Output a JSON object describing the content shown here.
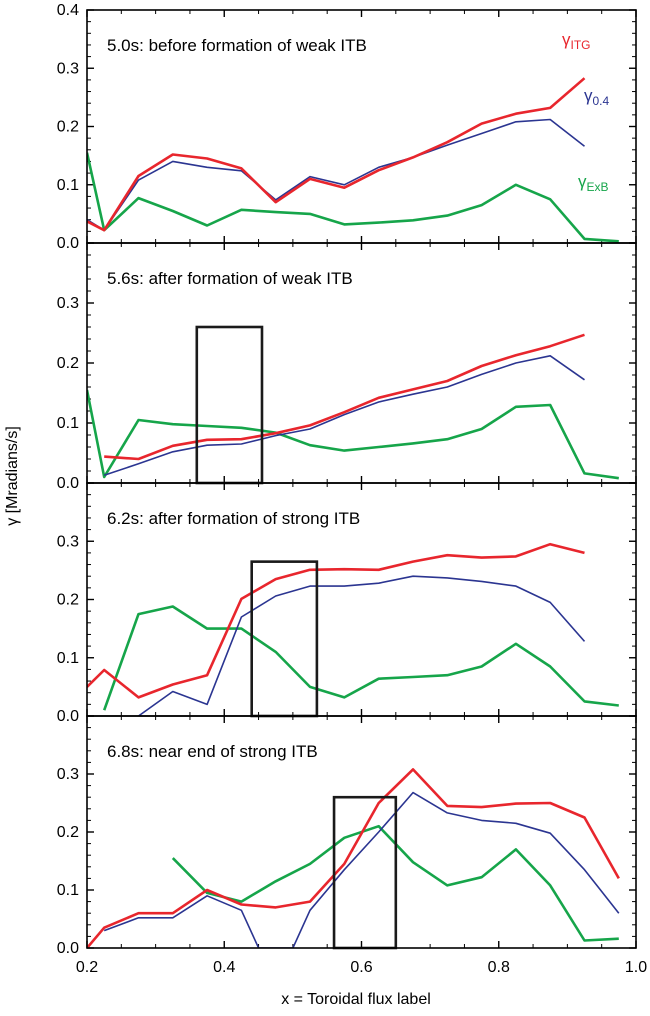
{
  "chart_data": {
    "type": "line",
    "xlabel": "x = Toroidal flux label",
    "ylabel": "γ [Mradians/s]",
    "xlim": [
      0.2,
      1.0
    ],
    "ylim": [
      0.0,
      0.4
    ],
    "xticks": [
      "0.2",
      "0.4",
      "0.6",
      "0.8",
      "1.0"
    ],
    "yticks": [
      "0.0",
      "0.1",
      "0.2",
      "0.3",
      "0.4"
    ],
    "series_styles": [
      {
        "key": "itg",
        "color": "#e8262d"
      },
      {
        "key": "g04",
        "color": "#2b3591"
      },
      {
        "key": "exb",
        "color": "#16a54a"
      }
    ],
    "legend": [
      {
        "base": "γ",
        "sub": "ITG",
        "color": "#e8262d"
      },
      {
        "base": "γ",
        "sub": "0.4",
        "color": "#2b3591"
      },
      {
        "base": "γ",
        "sub": "ExB",
        "color": "#16a54a"
      }
    ],
    "panels": [
      {
        "title": "5.0s: before formation of weak ITB",
        "box": null,
        "series": {
          "itg": {
            "x": [
              0.2,
              0.225,
              0.275,
              0.325,
              0.375,
              0.425,
              0.475,
              0.525,
              0.575,
              0.625,
              0.675,
              0.725,
              0.775,
              0.825,
              0.875,
              0.925
            ],
            "y": [
              0.037,
              0.022,
              0.115,
              0.152,
              0.145,
              0.128,
              0.07,
              0.11,
              0.095,
              0.125,
              0.147,
              0.173,
              0.205,
              0.222,
              0.232,
              0.283
            ]
          },
          "g04": {
            "x": [
              0.2,
              0.225,
              0.275,
              0.325,
              0.375,
              0.425,
              0.475,
              0.525,
              0.575,
              0.625,
              0.675,
              0.725,
              0.775,
              0.825,
              0.875,
              0.925
            ],
            "y": [
              0.04,
              0.022,
              0.108,
              0.14,
              0.13,
              0.124,
              0.074,
              0.114,
              0.1,
              0.13,
              0.147,
              0.168,
              0.188,
              0.208,
              0.212,
              0.166
            ]
          },
          "exb": {
            "x": [
              0.2,
              0.225,
              0.275,
              0.325,
              0.375,
              0.425,
              0.475,
              0.525,
              0.575,
              0.625,
              0.675,
              0.725,
              0.775,
              0.825,
              0.875,
              0.925,
              0.975
            ],
            "y": [
              0.155,
              0.022,
              0.077,
              0.055,
              0.03,
              0.057,
              0.053,
              0.05,
              0.032,
              0.035,
              0.039,
              0.047,
              0.065,
              0.1,
              0.075,
              0.007,
              0.003
            ]
          }
        }
      },
      {
        "title": "5.6s: after formation of weak ITB",
        "box": [
          0.36,
          0.455,
          0.0,
          0.26
        ],
        "series": {
          "itg": {
            "x": [
              0.225,
              0.275,
              0.325,
              0.375,
              0.425,
              0.475,
              0.525,
              0.575,
              0.625,
              0.675,
              0.725,
              0.775,
              0.825,
              0.875,
              0.925
            ],
            "y": [
              0.044,
              0.04,
              0.062,
              0.072,
              0.073,
              0.083,
              0.096,
              0.118,
              0.142,
              0.156,
              0.17,
              0.195,
              0.213,
              0.228,
              0.247
            ]
          },
          "g04": {
            "x": [
              0.225,
              0.275,
              0.325,
              0.375,
              0.425,
              0.475,
              0.525,
              0.575,
              0.625,
              0.675,
              0.725,
              0.775,
              0.825,
              0.875,
              0.925
            ],
            "y": [
              0.013,
              0.032,
              0.052,
              0.063,
              0.065,
              0.079,
              0.09,
              0.114,
              0.135,
              0.148,
              0.16,
              0.181,
              0.2,
              0.212,
              0.172
            ]
          },
          "exb": {
            "x": [
              0.2,
              0.225,
              0.275,
              0.325,
              0.375,
              0.425,
              0.475,
              0.525,
              0.575,
              0.625,
              0.675,
              0.725,
              0.775,
              0.825,
              0.875,
              0.925,
              0.975
            ],
            "y": [
              0.155,
              0.01,
              0.105,
              0.098,
              0.095,
              0.092,
              0.084,
              0.063,
              0.054,
              0.06,
              0.066,
              0.073,
              0.09,
              0.127,
              0.13,
              0.016,
              0.008
            ]
          }
        }
      },
      {
        "title": "6.2s: after formation of strong ITB",
        "box": [
          0.44,
          0.535,
          0.0,
          0.265
        ],
        "series": {
          "itg": {
            "x": [
              0.2,
              0.225,
              0.275,
              0.325,
              0.375,
              0.425,
              0.475,
              0.525,
              0.575,
              0.625,
              0.675,
              0.725,
              0.775,
              0.825,
              0.875,
              0.925
            ],
            "y": [
              0.05,
              0.079,
              0.032,
              0.054,
              0.07,
              0.201,
              0.235,
              0.251,
              0.252,
              0.251,
              0.265,
              0.276,
              0.272,
              0.274,
              0.295,
              0.28
            ]
          },
          "g04": {
            "x": [
              0.275,
              0.325,
              0.375,
              0.425,
              0.475,
              0.525,
              0.575,
              0.625,
              0.675,
              0.725,
              0.775,
              0.825,
              0.875,
              0.925
            ],
            "y": [
              0.0,
              0.042,
              0.02,
              0.17,
              0.206,
              0.223,
              0.223,
              0.228,
              0.24,
              0.237,
              0.231,
              0.223,
              0.195,
              0.128
            ]
          },
          "exb": {
            "x": [
              0.225,
              0.275,
              0.325,
              0.375,
              0.425,
              0.475,
              0.525,
              0.575,
              0.625,
              0.675,
              0.725,
              0.775,
              0.825,
              0.875,
              0.925,
              0.975
            ],
            "y": [
              0.01,
              0.175,
              0.188,
              0.15,
              0.15,
              0.11,
              0.05,
              0.032,
              0.064,
              0.067,
              0.07,
              0.085,
              0.124,
              0.085,
              0.025,
              0.018
            ]
          }
        }
      },
      {
        "title": "6.8s: near end of strong ITB",
        "box": [
          0.56,
          0.65,
          0.0,
          0.26
        ],
        "series": {
          "itg": {
            "x": [
              0.2,
              0.225,
              0.275,
              0.325,
              0.375,
              0.425,
              0.475,
              0.525,
              0.575,
              0.625,
              0.675,
              0.725,
              0.775,
              0.825,
              0.875,
              0.925,
              0.975
            ],
            "y": [
              0.0,
              0.035,
              0.06,
              0.06,
              0.1,
              0.075,
              0.07,
              0.08,
              0.145,
              0.25,
              0.308,
              0.245,
              0.243,
              0.249,
              0.25,
              0.225,
              0.12
            ]
          },
          "g04": {
            "x": [
              0.225,
              0.275,
              0.325,
              0.375,
              0.425,
              0.45,
              0.5,
              0.525,
              0.575,
              0.625,
              0.675,
              0.725,
              0.775,
              0.825,
              0.875,
              0.925,
              0.975
            ],
            "y": [
              0.03,
              0.052,
              0.052,
              0.09,
              0.065,
              0.0,
              0.0,
              0.065,
              0.135,
              0.2,
              0.268,
              0.233,
              0.22,
              0.215,
              0.198,
              0.135,
              0.06
            ]
          },
          "exb": {
            "x": [
              0.325,
              0.375,
              0.425,
              0.475,
              0.525,
              0.575,
              0.625,
              0.675,
              0.725,
              0.775,
              0.825,
              0.875,
              0.925,
              0.975
            ],
            "y": [
              0.155,
              0.095,
              0.08,
              0.115,
              0.145,
              0.19,
              0.21,
              0.148,
              0.108,
              0.122,
              0.17,
              0.108,
              0.013,
              0.016
            ]
          }
        }
      }
    ]
  }
}
